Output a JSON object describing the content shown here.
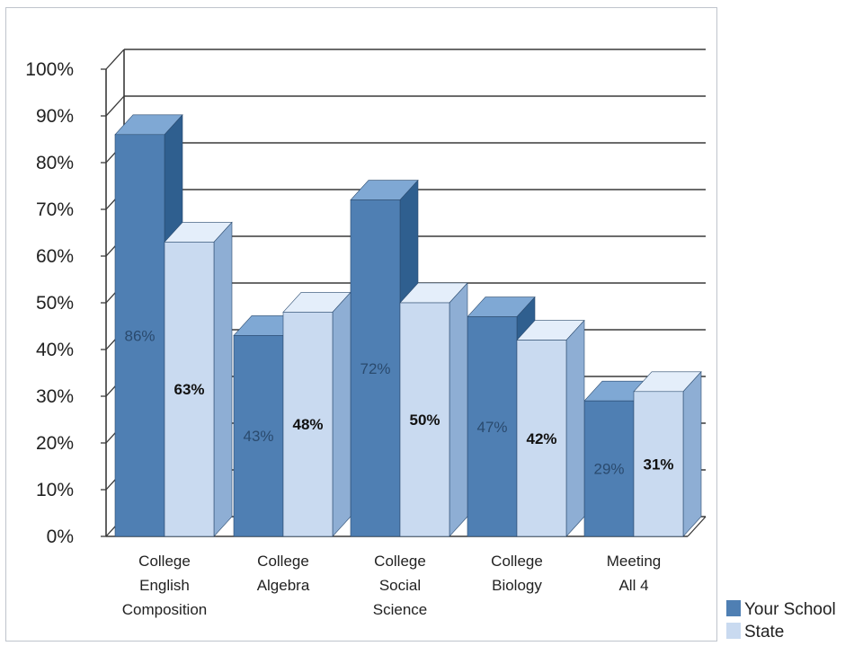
{
  "chart_data": {
    "type": "bar",
    "categories": [
      [
        "College",
        "English",
        "Composition"
      ],
      [
        "College",
        "Algebra"
      ],
      [
        "College",
        "Social",
        "Science"
      ],
      [
        "College",
        "Biology"
      ],
      [
        "Meeting",
        "All 4"
      ]
    ],
    "series": [
      {
        "name": "Your School",
        "values": [
          86,
          43,
          72,
          47,
          29
        ],
        "labels": [
          "86%",
          "43%",
          "72%",
          "47%",
          "29%"
        ]
      },
      {
        "name": "State",
        "values": [
          63,
          48,
          50,
          42,
          31
        ],
        "labels": [
          "63%",
          "48%",
          "50%",
          "42%",
          "31%"
        ]
      }
    ],
    "ylim": [
      0,
      100
    ],
    "yticks": [
      "0%",
      "10%",
      "20%",
      "30%",
      "40%",
      "50%",
      "60%",
      "70%",
      "80%",
      "90%",
      "100%"
    ],
    "grid": true,
    "legend_position": "bottom-right",
    "colors": {
      "your_school_front": "#4f7fb3",
      "your_school_top": "#7fa8d4",
      "your_school_side": "#2f5f8f",
      "state_front": "#c9daf0",
      "state_top": "#e4eefa",
      "state_side": "#8eaed4",
      "grid": "#3a3a3a"
    }
  }
}
